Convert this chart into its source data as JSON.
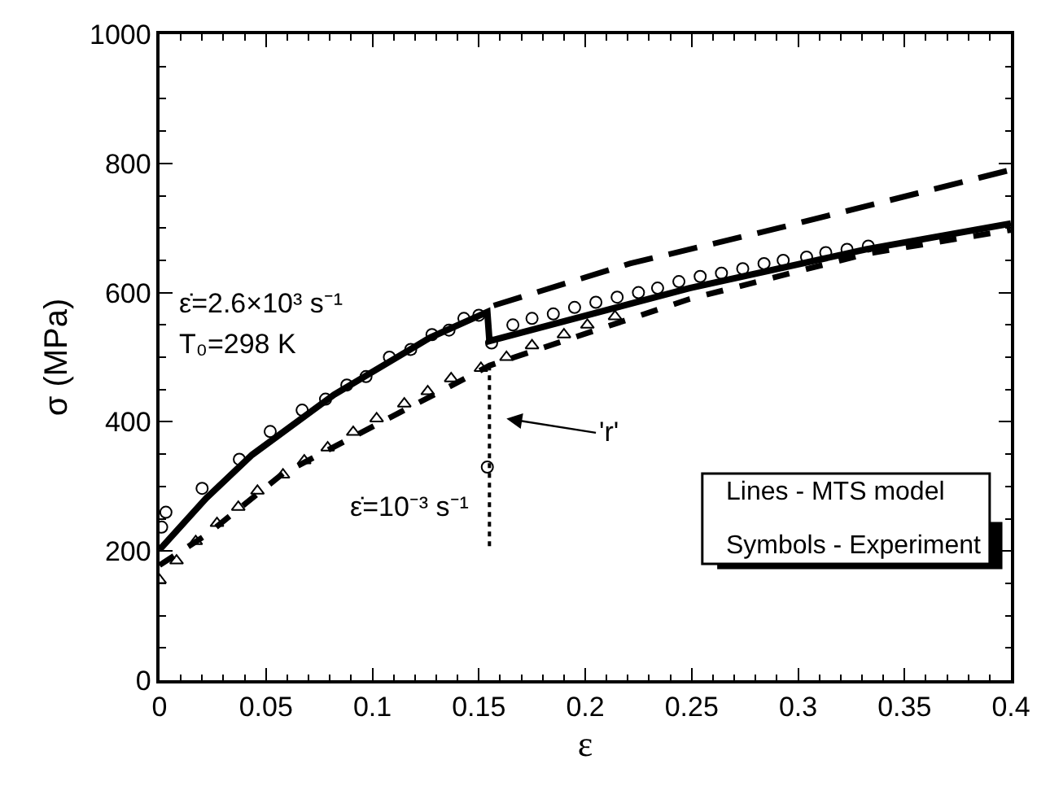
{
  "chart_data": {
    "type": "line",
    "xlabel": "ε",
    "ylabel": "σ (MPa)",
    "xlim": [
      0,
      0.4
    ],
    "xticks": [
      0,
      0.05,
      0.1,
      0.15,
      0.2,
      0.25,
      0.3,
      0.35,
      0.4
    ],
    "ylim": [
      0,
      1000
    ],
    "yticks": [
      0,
      200,
      400,
      600,
      800,
      1000
    ],
    "legend": false,
    "series": [
      {
        "color": "#000000",
        "line_style": "solid",
        "marker": "none",
        "x": [
          0,
          0.022,
          0.0435,
          0.082,
          0.127,
          0.154,
          0.155,
          0.249,
          0.332,
          0.4
        ],
        "values": [
          202,
          282,
          349,
          442,
          530,
          570,
          525,
          607,
          667,
          707
        ]
      },
      {
        "color": "#000000",
        "line_style": "dashed",
        "marker": "none",
        "x": [
          0.157,
          0.221,
          0.291,
          0.4
        ],
        "values": [
          580,
          645,
          700,
          790
        ]
      },
      {
        "color": "#000000",
        "line_style": "dashed",
        "marker": "none",
        "x": [
          0,
          0.022,
          0.058,
          0.151,
          0.155,
          0.249,
          0.332,
          0.4
        ],
        "values": [
          178,
          225,
          320,
          480,
          487,
          590,
          660,
          697
        ]
      },
      {
        "color": "#000000",
        "line_style": "dotted",
        "marker": "none",
        "x": [
          0.155,
          0.155
        ],
        "values": [
          487,
          202
        ]
      },
      {
        "type": "scatter",
        "color": "#000000",
        "marker": "circle",
        "x": [
          0.001,
          0.003,
          0.02,
          0.0375,
          0.052,
          0.067,
          0.078,
          0.088,
          0.097,
          0.108,
          0.118,
          0.128,
          0.136,
          0.143,
          0.15,
          0.154,
          0.156,
          0.166,
          0.175,
          0.185,
          0.195,
          0.205,
          0.215,
          0.225,
          0.234,
          0.244,
          0.254,
          0.264,
          0.274,
          0.284,
          0.293,
          0.304,
          0.313,
          0.323,
          0.333
        ],
        "values": [
          237,
          260,
          297,
          342,
          385,
          418,
          435,
          457,
          470,
          500,
          512,
          535,
          542,
          560,
          565,
          330,
          522,
          550,
          560,
          567,
          577,
          585,
          593,
          600,
          607,
          617,
          625,
          630,
          637,
          645,
          650,
          655,
          662,
          667,
          672
        ]
      },
      {
        "type": "scatter",
        "color": "#000000",
        "marker": "triangle",
        "x": [
          0,
          0.008,
          0.017,
          0.027,
          0.037,
          0.046,
          0.058,
          0.068,
          0.079,
          0.091,
          0.102,
          0.115,
          0.126,
          0.137,
          0.151,
          0.163,
          0.175,
          0.19,
          0.201,
          0.214
        ],
        "values": [
          155,
          185,
          215,
          243,
          268,
          293,
          318,
          340,
          360,
          384,
          405,
          428,
          447,
          467,
          483,
          500,
          518,
          535,
          550,
          563
        ]
      }
    ],
    "annotations": [
      "ε̇=2.6×10³ s⁻¹",
      "T₀=298 K",
      "ε̇=10⁻³ s⁻¹",
      "'r'",
      "Lines - MTS model",
      "Symbols - Experiment"
    ]
  }
}
